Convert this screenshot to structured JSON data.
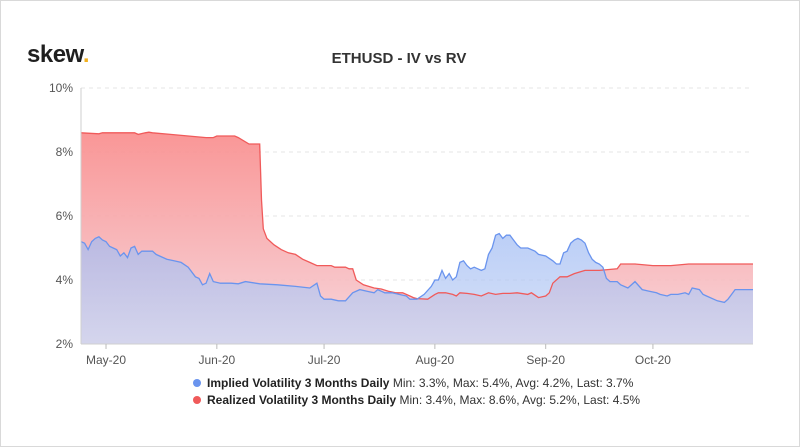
{
  "brand": {
    "logo_text": "skew",
    "logo_dot": "."
  },
  "chart_data": {
    "type": "area",
    "title": "ETHUSD - IV vs RV",
    "xlabel": "",
    "ylabel": "",
    "ylim": [
      2,
      10
    ],
    "y_ticks": [
      2,
      4,
      6,
      8,
      10
    ],
    "y_tick_labels": [
      "2%",
      "4%",
      "6%",
      "8%",
      "10%"
    ],
    "x_ticks": [
      "May-20",
      "Jun-20",
      "Jul-20",
      "Aug-20",
      "Sep-20",
      "Oct-20"
    ],
    "x_range_days": [
      0,
      188
    ],
    "x_tick_days": [
      7,
      38,
      68,
      99,
      130,
      160
    ],
    "grid": true,
    "series": [
      {
        "name": "Realized Volatility 3 Months Daily",
        "stats": "Min: 3.4%, Max: 8.6%, Avg: 5.2%, Last: 4.5%",
        "color": "#f05a5a",
        "fill_top": "#f98b8b",
        "fill_bottom": "#f6d2d8",
        "points": [
          [
            0,
            8.6
          ],
          [
            5,
            8.57
          ],
          [
            6,
            8.6
          ],
          [
            15,
            8.6
          ],
          [
            16,
            8.55
          ],
          [
            18,
            8.6
          ],
          [
            19,
            8.62
          ],
          [
            20,
            8.6
          ],
          [
            25,
            8.55
          ],
          [
            30,
            8.5
          ],
          [
            35,
            8.45
          ],
          [
            37,
            8.45
          ],
          [
            38,
            8.5
          ],
          [
            43,
            8.5
          ],
          [
            44,
            8.45
          ],
          [
            47,
            8.25
          ],
          [
            50,
            8.25
          ],
          [
            50.5,
            6.5
          ],
          [
            51,
            5.6
          ],
          [
            52,
            5.3
          ],
          [
            54,
            5.1
          ],
          [
            56,
            4.95
          ],
          [
            58,
            4.85
          ],
          [
            60,
            4.8
          ],
          [
            62,
            4.65
          ],
          [
            64,
            4.55
          ],
          [
            66,
            4.45
          ],
          [
            70,
            4.45
          ],
          [
            71,
            4.4
          ],
          [
            74,
            4.4
          ],
          [
            75,
            4.35
          ],
          [
            76,
            4.35
          ],
          [
            77,
            4.0
          ],
          [
            79,
            3.85
          ],
          [
            82,
            3.75
          ],
          [
            84,
            3.72
          ],
          [
            86,
            3.65
          ],
          [
            88,
            3.6
          ],
          [
            90,
            3.6
          ],
          [
            92,
            3.5
          ],
          [
            93,
            3.45
          ],
          [
            94,
            3.42
          ],
          [
            97,
            3.4
          ],
          [
            99,
            3.55
          ],
          [
            100,
            3.6
          ],
          [
            102,
            3.6
          ],
          [
            104,
            3.55
          ],
          [
            105,
            3.5
          ],
          [
            106,
            3.6
          ],
          [
            108,
            3.58
          ],
          [
            110,
            3.55
          ],
          [
            112,
            3.5
          ],
          [
            114,
            3.6
          ],
          [
            116,
            3.55
          ],
          [
            118,
            3.58
          ],
          [
            120,
            3.58
          ],
          [
            122,
            3.6
          ],
          [
            125,
            3.55
          ],
          [
            126,
            3.6
          ],
          [
            128,
            3.45
          ],
          [
            130,
            3.5
          ],
          [
            131,
            3.6
          ],
          [
            132,
            3.9
          ],
          [
            134,
            4.1
          ],
          [
            136,
            4.1
          ],
          [
            138,
            4.2
          ],
          [
            141,
            4.3
          ],
          [
            145,
            4.3
          ],
          [
            150,
            4.35
          ],
          [
            151,
            4.5
          ],
          [
            155,
            4.5
          ],
          [
            160,
            4.45
          ],
          [
            165,
            4.45
          ],
          [
            170,
            4.5
          ],
          [
            180,
            4.5
          ],
          [
            188,
            4.5
          ]
        ]
      },
      {
        "name": "Implied Volatility 3 Months Daily",
        "stats": "Min: 3.3%, Max: 5.4%, Avg: 4.2%, Last: 3.7%",
        "color": "#6a94ee",
        "fill_top": "#9fbaf3",
        "fill_bottom": "#c6d5f4",
        "points": [
          [
            0,
            5.2
          ],
          [
            1,
            5.15
          ],
          [
            2,
            4.95
          ],
          [
            3,
            5.2
          ],
          [
            4,
            5.3
          ],
          [
            5,
            5.35
          ],
          [
            6,
            5.25
          ],
          [
            7,
            5.2
          ],
          [
            8,
            5.05
          ],
          [
            9,
            5.0
          ],
          [
            10,
            4.95
          ],
          [
            11,
            4.75
          ],
          [
            12,
            4.85
          ],
          [
            13,
            4.7
          ],
          [
            14,
            5.0
          ],
          [
            15,
            5.05
          ],
          [
            16,
            4.8
          ],
          [
            17,
            4.9
          ],
          [
            18,
            4.9
          ],
          [
            19,
            4.9
          ],
          [
            20,
            4.9
          ],
          [
            21,
            4.8
          ],
          [
            22,
            4.75
          ],
          [
            24,
            4.65
          ],
          [
            26,
            4.6
          ],
          [
            28,
            4.55
          ],
          [
            30,
            4.4
          ],
          [
            32,
            4.1
          ],
          [
            33,
            4.05
          ],
          [
            34,
            3.85
          ],
          [
            35,
            3.9
          ],
          [
            36,
            4.2
          ],
          [
            37,
            3.95
          ],
          [
            39,
            3.9
          ],
          [
            42,
            3.9
          ],
          [
            44,
            3.88
          ],
          [
            46,
            3.95
          ],
          [
            50,
            3.88
          ],
          [
            55,
            3.85
          ],
          [
            60,
            3.8
          ],
          [
            64,
            3.75
          ],
          [
            66,
            3.9
          ],
          [
            67,
            3.5
          ],
          [
            68,
            3.4
          ],
          [
            70,
            3.4
          ],
          [
            72,
            3.35
          ],
          [
            74,
            3.35
          ],
          [
            76,
            3.6
          ],
          [
            78,
            3.7
          ],
          [
            80,
            3.65
          ],
          [
            82,
            3.6
          ],
          [
            83,
            3.7
          ],
          [
            85,
            3.6
          ],
          [
            87,
            3.6
          ],
          [
            89,
            3.55
          ],
          [
            91,
            3.5
          ],
          [
            92,
            3.4
          ],
          [
            94,
            3.4
          ],
          [
            96,
            3.55
          ],
          [
            98,
            3.8
          ],
          [
            99,
            4.0
          ],
          [
            100,
            4.0
          ],
          [
            101,
            4.3
          ],
          [
            102,
            4.05
          ],
          [
            103,
            4.2
          ],
          [
            104,
            4.0
          ],
          [
            105,
            4.1
          ],
          [
            106,
            4.55
          ],
          [
            107,
            4.6
          ],
          [
            108,
            4.45
          ],
          [
            109,
            4.35
          ],
          [
            110,
            4.4
          ],
          [
            111,
            4.35
          ],
          [
            112,
            4.3
          ],
          [
            113,
            4.35
          ],
          [
            114,
            4.8
          ],
          [
            115,
            5.0
          ],
          [
            116,
            5.4
          ],
          [
            117,
            5.45
          ],
          [
            118,
            5.3
          ],
          [
            119,
            5.4
          ],
          [
            120,
            5.4
          ],
          [
            121,
            5.25
          ],
          [
            122,
            5.1
          ],
          [
            123,
            5.0
          ],
          [
            125,
            5.0
          ],
          [
            127,
            4.9
          ],
          [
            128,
            4.8
          ],
          [
            130,
            4.75
          ],
          [
            132,
            4.6
          ],
          [
            133,
            4.5
          ],
          [
            134,
            4.5
          ],
          [
            135,
            4.85
          ],
          [
            136,
            4.9
          ],
          [
            137,
            5.15
          ],
          [
            138,
            5.25
          ],
          [
            139,
            5.3
          ],
          [
            140,
            5.25
          ],
          [
            141,
            5.15
          ],
          [
            142,
            4.85
          ],
          [
            143,
            4.65
          ],
          [
            144,
            4.55
          ],
          [
            145,
            4.5
          ],
          [
            146,
            4.4
          ],
          [
            147,
            4.05
          ],
          [
            148,
            3.95
          ],
          [
            150,
            3.95
          ],
          [
            151,
            3.85
          ],
          [
            153,
            3.75
          ],
          [
            155,
            3.95
          ],
          [
            157,
            3.7
          ],
          [
            159,
            3.65
          ],
          [
            161,
            3.6
          ],
          [
            162,
            3.55
          ],
          [
            164,
            3.5
          ],
          [
            165,
            3.55
          ],
          [
            167,
            3.55
          ],
          [
            169,
            3.6
          ],
          [
            170,
            3.55
          ],
          [
            171,
            3.75
          ],
          [
            173,
            3.7
          ],
          [
            174,
            3.55
          ],
          [
            175,
            3.5
          ],
          [
            177,
            3.4
          ],
          [
            178,
            3.35
          ],
          [
            180,
            3.3
          ],
          [
            181,
            3.4
          ],
          [
            182,
            3.55
          ],
          [
            183,
            3.7
          ],
          [
            185,
            3.7
          ],
          [
            188,
            3.7
          ]
        ]
      }
    ]
  }
}
